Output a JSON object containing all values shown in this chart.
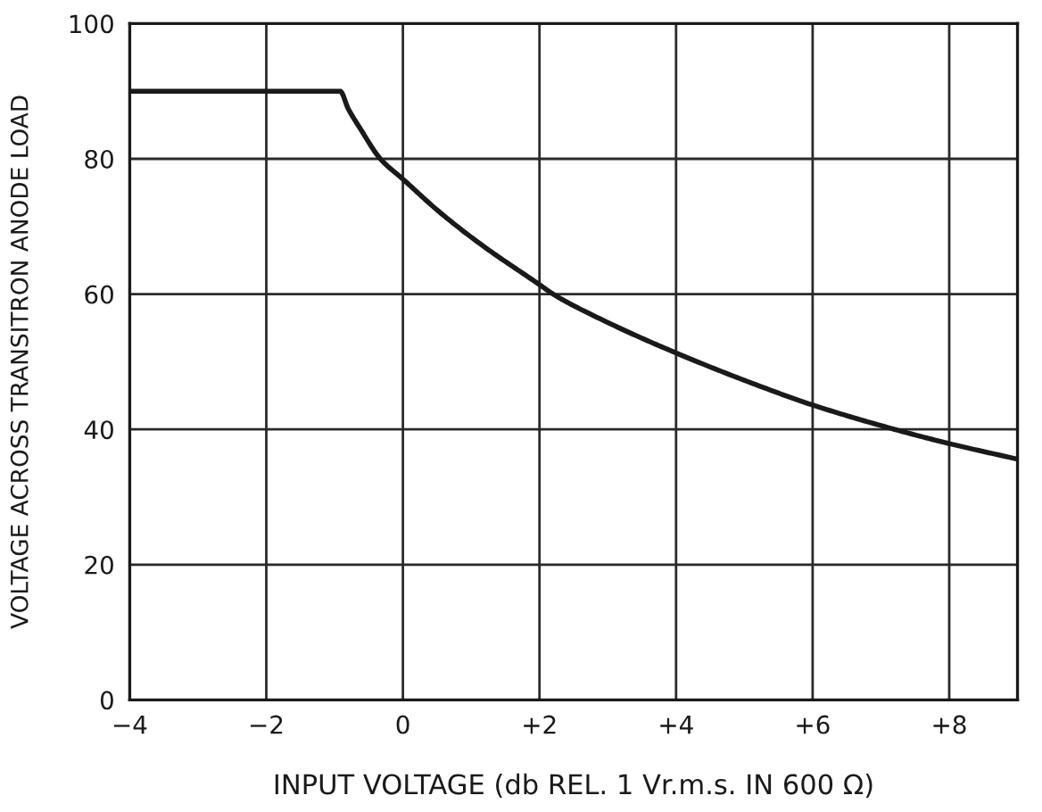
{
  "chart_data": {
    "type": "line",
    "xlabel": "INPUT VOLTAGE (db REL. 1 Vr.m.s. IN 600 Ω)",
    "ylabel": "VOLTAGE ACROSS TRANSITRON ANODE LOAD",
    "x": [
      -4,
      -2,
      -0.92,
      -0.8,
      -0.62,
      -0.33,
      0,
      0.54,
      1.15,
      2,
      2.2,
      2.98,
      4,
      5.33,
      6,
      7.2,
      8,
      9
    ],
    "series": [
      {
        "color": "#1a1a1a",
        "values": [
          90,
          90,
          90,
          87.4,
          84.4,
          80,
          77,
          72.1,
          67.3,
          61.4,
          60,
          55.9,
          51.3,
          46,
          43.6,
          40,
          37.9,
          35.6
        ]
      }
    ],
    "xlim": [
      -4,
      9
    ],
    "ylim": [
      0,
      100
    ],
    "xticks": [
      {
        "value": -4,
        "label": "−4"
      },
      {
        "value": -2,
        "label": "−2"
      },
      0,
      {
        "value": 2,
        "label": "+2"
      },
      {
        "value": 4,
        "label": "+4"
      },
      {
        "value": 6,
        "label": "+6"
      },
      {
        "value": 8,
        "label": "+8"
      }
    ],
    "yticks": [
      0,
      20,
      40,
      60,
      80,
      100
    ],
    "grid": true,
    "marker": "none",
    "line_style": "solid"
  }
}
